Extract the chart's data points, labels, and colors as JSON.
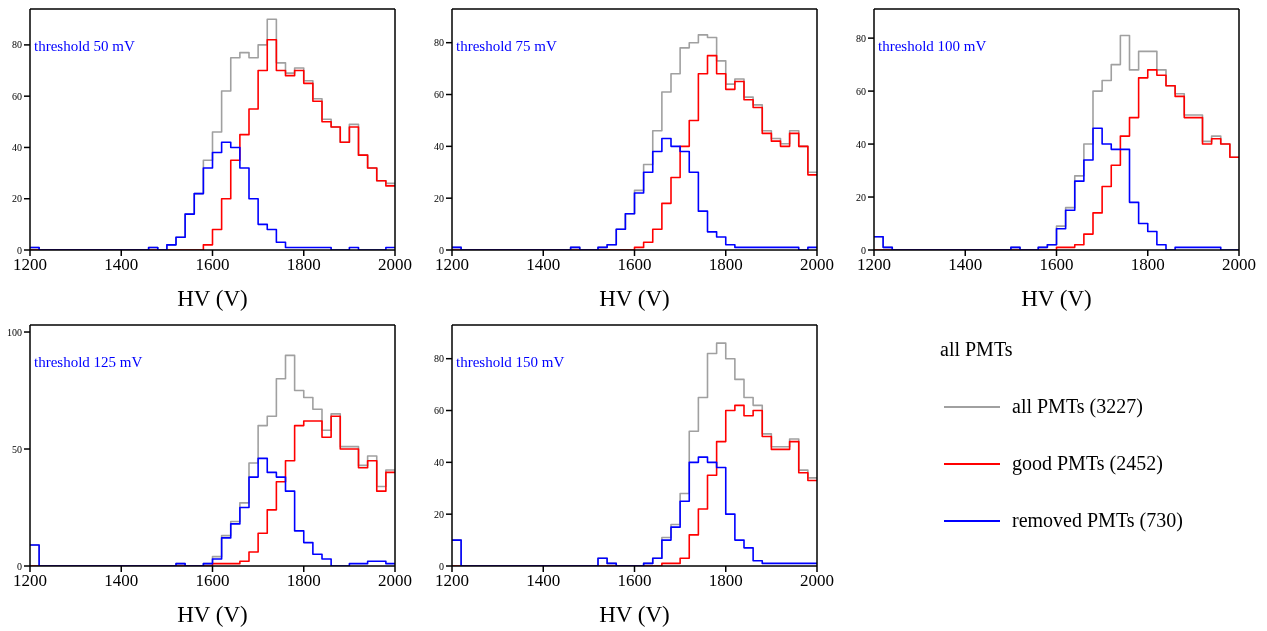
{
  "chart_data": [
    {
      "type": "histogram",
      "annotations": [
        "threshold 50 mV"
      ],
      "xlabel": "HV (V)",
      "xlim": [
        1200,
        2000
      ],
      "xticks": [
        1200,
        1400,
        1600,
        1800,
        2000
      ],
      "ylim": [
        0,
        94
      ],
      "yticks": [
        0,
        20,
        40,
        60,
        80
      ],
      "bins": [
        1200,
        1220,
        1240,
        1260,
        1280,
        1300,
        1320,
        1340,
        1360,
        1380,
        1400,
        1420,
        1440,
        1460,
        1480,
        1500,
        1520,
        1540,
        1560,
        1580,
        1600,
        1620,
        1640,
        1660,
        1680,
        1700,
        1720,
        1740,
        1760,
        1780,
        1800,
        1820,
        1840,
        1860,
        1880,
        1900,
        1920,
        1940,
        1960,
        1980,
        2000
      ],
      "series": [
        {
          "color": "#a0a0a0",
          "values": [
            1,
            0,
            0,
            0,
            0,
            0,
            0,
            0,
            0,
            0,
            0,
            0,
            0,
            1,
            0,
            2,
            5,
            14,
            22,
            35,
            46,
            62,
            75,
            77,
            75,
            80,
            90,
            73,
            69,
            71,
            66,
            59,
            51,
            48,
            42,
            49,
            37,
            32,
            27,
            26
          ]
        },
        {
          "color": "#ff0000",
          "values": [
            0,
            0,
            0,
            0,
            0,
            0,
            0,
            0,
            0,
            0,
            0,
            0,
            0,
            0,
            0,
            0,
            0,
            0,
            0,
            2,
            8,
            20,
            35,
            45,
            55,
            70,
            82,
            70,
            68,
            70,
            65,
            58,
            50,
            48,
            42,
            48,
            37,
            32,
            27,
            25
          ]
        },
        {
          "color": "#0000ff",
          "values": [
            1,
            0,
            0,
            0,
            0,
            0,
            0,
            0,
            0,
            0,
            0,
            0,
            0,
            1,
            0,
            2,
            5,
            14,
            22,
            32,
            38,
            42,
            40,
            32,
            20,
            10,
            8,
            3,
            1,
            1,
            1,
            1,
            1,
            0,
            0,
            1,
            0,
            0,
            0,
            1
          ]
        }
      ]
    },
    {
      "type": "histogram",
      "annotations": [
        "threshold 75 mV"
      ],
      "xlabel": "HV (V)",
      "xlim": [
        1200,
        2000
      ],
      "xticks": [
        1200,
        1400,
        1600,
        1800,
        2000
      ],
      "ylim": [
        0,
        93
      ],
      "yticks": [
        0,
        20,
        40,
        60,
        80
      ],
      "bins": [
        1200,
        1220,
        1240,
        1260,
        1280,
        1300,
        1320,
        1340,
        1360,
        1380,
        1400,
        1420,
        1440,
        1460,
        1480,
        1500,
        1520,
        1540,
        1560,
        1580,
        1600,
        1620,
        1640,
        1660,
        1680,
        1700,
        1720,
        1740,
        1760,
        1780,
        1800,
        1820,
        1840,
        1860,
        1880,
        1900,
        1920,
        1940,
        1960,
        1980,
        2000
      ],
      "series": [
        {
          "color": "#a0a0a0",
          "values": [
            1,
            0,
            0,
            0,
            0,
            0,
            0,
            0,
            0,
            0,
            0,
            0,
            0,
            1,
            0,
            0,
            1,
            2,
            8,
            14,
            23,
            33,
            46,
            61,
            68,
            78,
            80,
            83,
            82,
            73,
            64,
            66,
            59,
            56,
            46,
            43,
            41,
            46,
            40,
            30
          ]
        },
        {
          "color": "#ff0000",
          "values": [
            0,
            0,
            0,
            0,
            0,
            0,
            0,
            0,
            0,
            0,
            0,
            0,
            0,
            0,
            0,
            0,
            0,
            0,
            0,
            0,
            1,
            3,
            8,
            18,
            28,
            40,
            50,
            68,
            75,
            68,
            62,
            65,
            58,
            55,
            45,
            42,
            40,
            45,
            40,
            29
          ]
        },
        {
          "color": "#0000ff",
          "values": [
            1,
            0,
            0,
            0,
            0,
            0,
            0,
            0,
            0,
            0,
            0,
            0,
            0,
            1,
            0,
            0,
            1,
            2,
            8,
            14,
            22,
            30,
            38,
            43,
            40,
            38,
            30,
            15,
            7,
            5,
            2,
            1,
            1,
            1,
            1,
            1,
            1,
            1,
            0,
            1
          ]
        }
      ]
    },
    {
      "type": "histogram",
      "annotations": [
        "threshold 100 mV"
      ],
      "xlabel": "HV (V)",
      "xlim": [
        1200,
        2000
      ],
      "xticks": [
        1200,
        1400,
        1600,
        1800,
        2000
      ],
      "ylim": [
        0,
        91
      ],
      "yticks": [
        0,
        20,
        40,
        60,
        80
      ],
      "bins": [
        1200,
        1220,
        1240,
        1260,
        1280,
        1300,
        1320,
        1340,
        1360,
        1380,
        1400,
        1420,
        1440,
        1460,
        1480,
        1500,
        1520,
        1540,
        1560,
        1580,
        1600,
        1620,
        1640,
        1660,
        1680,
        1700,
        1720,
        1740,
        1760,
        1780,
        1800,
        1820,
        1840,
        1860,
        1880,
        1900,
        1920,
        1940,
        1960,
        1980,
        2000
      ],
      "series": [
        {
          "color": "#a0a0a0",
          "values": [
            5,
            1,
            0,
            0,
            0,
            0,
            0,
            0,
            0,
            0,
            0,
            0,
            0,
            0,
            0,
            1,
            0,
            0,
            1,
            2,
            9,
            16,
            28,
            40,
            60,
            64,
            70,
            81,
            68,
            75,
            75,
            68,
            62,
            59,
            51,
            51,
            41,
            43,
            40,
            35
          ]
        },
        {
          "color": "#ff0000",
          "values": [
            0,
            0,
            0,
            0,
            0,
            0,
            0,
            0,
            0,
            0,
            0,
            0,
            0,
            0,
            0,
            0,
            0,
            0,
            0,
            0,
            1,
            1,
            2,
            6,
            14,
            24,
            32,
            43,
            50,
            65,
            68,
            66,
            62,
            58,
            50,
            50,
            40,
            42,
            40,
            35
          ]
        },
        {
          "color": "#0000ff",
          "values": [
            5,
            1,
            0,
            0,
            0,
            0,
            0,
            0,
            0,
            0,
            0,
            0,
            0,
            0,
            0,
            1,
            0,
            0,
            1,
            2,
            8,
            15,
            26,
            34,
            46,
            40,
            38,
            38,
            18,
            10,
            7,
            2,
            0,
            1,
            1,
            1,
            1,
            1,
            0,
            0
          ]
        }
      ]
    },
    {
      "type": "histogram",
      "annotations": [
        "threshold 125 mV"
      ],
      "xlabel": "HV (V)",
      "xlim": [
        1200,
        2000
      ],
      "xticks": [
        1200,
        1400,
        1600,
        1800,
        2000
      ],
      "ylim": [
        0,
        103
      ],
      "yticks": [
        0,
        50,
        100
      ],
      "bins": [
        1200,
        1220,
        1240,
        1260,
        1280,
        1300,
        1320,
        1340,
        1360,
        1380,
        1400,
        1420,
        1440,
        1460,
        1480,
        1500,
        1520,
        1540,
        1560,
        1580,
        1600,
        1620,
        1640,
        1660,
        1680,
        1700,
        1720,
        1740,
        1760,
        1780,
        1800,
        1820,
        1840,
        1860,
        1880,
        1900,
        1920,
        1940,
        1960,
        1980,
        2000
      ],
      "series": [
        {
          "color": "#a0a0a0",
          "values": [
            9,
            0,
            0,
            0,
            0,
            0,
            0,
            0,
            0,
            0,
            0,
            0,
            0,
            0,
            0,
            0,
            1,
            0,
            0,
            1,
            4,
            13,
            19,
            27,
            44,
            60,
            64,
            80,
            90,
            75,
            72,
            67,
            58,
            65,
            51,
            51,
            43,
            47,
            34,
            41
          ]
        },
        {
          "color": "#ff0000",
          "values": [
            0,
            0,
            0,
            0,
            0,
            0,
            0,
            0,
            0,
            0,
            0,
            0,
            0,
            0,
            0,
            0,
            0,
            0,
            0,
            0,
            1,
            1,
            1,
            2,
            6,
            14,
            24,
            36,
            45,
            60,
            62,
            62,
            55,
            64,
            50,
            50,
            42,
            45,
            32,
            40
          ]
        },
        {
          "color": "#0000ff",
          "values": [
            9,
            0,
            0,
            0,
            0,
            0,
            0,
            0,
            0,
            0,
            0,
            0,
            0,
            0,
            0,
            0,
            1,
            0,
            0,
            1,
            3,
            12,
            18,
            25,
            38,
            46,
            40,
            38,
            32,
            15,
            10,
            5,
            3,
            0,
            0,
            1,
            1,
            2,
            2,
            1
          ]
        }
      ]
    },
    {
      "type": "histogram",
      "annotations": [
        "threshold 150 mV"
      ],
      "xlabel": "HV (V)",
      "xlim": [
        1200,
        2000
      ],
      "xticks": [
        1200,
        1400,
        1600,
        1800,
        2000
      ],
      "ylim": [
        0,
        93
      ],
      "yticks": [
        0,
        20,
        40,
        60,
        80
      ],
      "legend": "right",
      "legend_title": "all PMTs",
      "bins": [
        1200,
        1220,
        1240,
        1260,
        1280,
        1300,
        1320,
        1340,
        1360,
        1380,
        1400,
        1420,
        1440,
        1460,
        1480,
        1500,
        1520,
        1540,
        1560,
        1580,
        1600,
        1620,
        1640,
        1660,
        1680,
        1700,
        1720,
        1740,
        1760,
        1780,
        1800,
        1820,
        1840,
        1860,
        1880,
        1900,
        1920,
        1940,
        1960,
        1980,
        2000
      ],
      "series": [
        {
          "name": "all PMTs (3227)",
          "color": "#a0a0a0",
          "values": [
            10,
            0,
            0,
            0,
            0,
            0,
            0,
            0,
            0,
            0,
            0,
            0,
            0,
            0,
            0,
            0,
            3,
            1,
            0,
            0,
            0,
            1,
            3,
            11,
            16,
            28,
            52,
            65,
            82,
            86,
            80,
            72,
            65,
            62,
            51,
            46,
            46,
            49,
            37,
            34
          ]
        },
        {
          "name": "good PMTs (2452)",
          "color": "#ff0000",
          "values": [
            0,
            0,
            0,
            0,
            0,
            0,
            0,
            0,
            0,
            0,
            0,
            0,
            0,
            0,
            0,
            0,
            0,
            0,
            0,
            0,
            0,
            0,
            0,
            1,
            1,
            3,
            12,
            22,
            35,
            48,
            60,
            62,
            58,
            60,
            50,
            45,
            45,
            48,
            36,
            33
          ]
        },
        {
          "name": "removed PMTs (730)",
          "color": "#0000ff",
          "values": [
            10,
            0,
            0,
            0,
            0,
            0,
            0,
            0,
            0,
            0,
            0,
            0,
            0,
            0,
            0,
            0,
            3,
            1,
            0,
            0,
            0,
            1,
            3,
            10,
            15,
            25,
            40,
            42,
            40,
            38,
            20,
            10,
            7,
            2,
            1,
            1,
            1,
            1,
            1,
            1
          ]
        }
      ]
    }
  ]
}
